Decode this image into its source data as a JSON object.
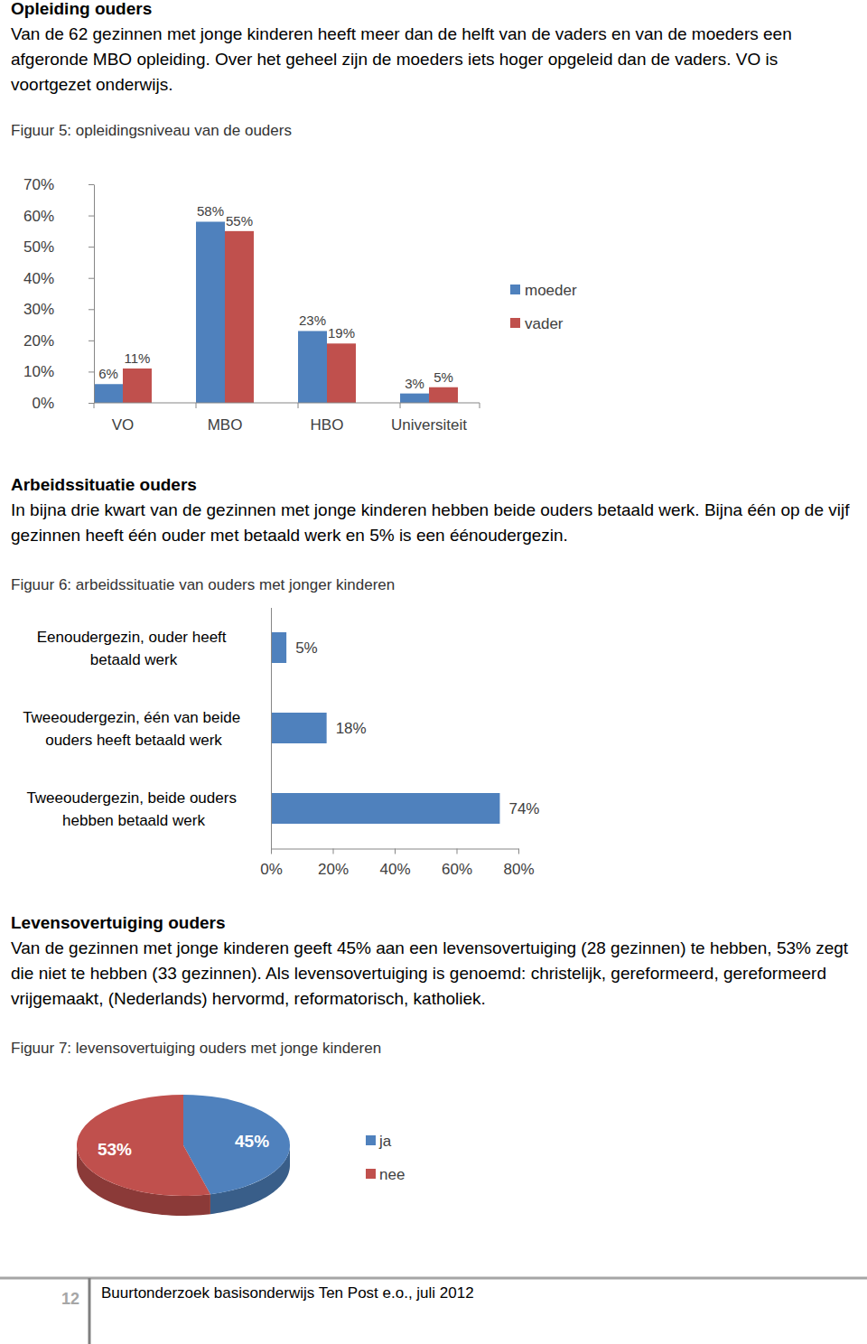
{
  "sections": [
    {
      "heading": "Opleiding ouders",
      "text": "Van de 62 gezinnen met jonge kinderen heeft meer dan de helft van de vaders en van de moeders een afgeronde MBO opleiding. Over het geheel zijn de moeders iets hoger opgeleid dan de vaders. VO is voortgezet onderwijs."
    },
    {
      "heading": "Arbeidssituatie ouders",
      "text": "In bijna drie kwart van de gezinnen met jonge kinderen hebben beide ouders betaald werk. Bijna één op de vijf gezinnen heeft één ouder met betaald werk en 5% is een éénoudergezin."
    },
    {
      "heading": "Levensovertuiging ouders",
      "text": "Van de gezinnen met jonge kinderen geeft 45% aan een levensovertuiging (28 gezinnen) te hebben, 53% zegt die niet te hebben (33 gezinnen). Als levensovertuiging is genoemd: christelijk, gereformeerd, gereformeerd vrijgemaakt, (Nederlands) hervormd, reformatorisch, katholiek."
    }
  ],
  "chart_data": [
    {
      "type": "bar",
      "title": "Figuur 5: opleidingsniveau van de ouders",
      "categories": [
        "VO",
        "MBO",
        "HBO",
        "Universiteit"
      ],
      "series": [
        {
          "name": "moeder",
          "color": "#4f81bd",
          "values": [
            6,
            58,
            23,
            3
          ],
          "value_labels": [
            "6%",
            "58%",
            "23%",
            "3%"
          ]
        },
        {
          "name": "vader",
          "color": "#c0504d",
          "values": [
            11,
            55,
            19,
            5
          ],
          "value_labels": [
            "11%",
            "55%",
            "19%",
            "5%"
          ]
        }
      ],
      "ylim": [
        0,
        70
      ],
      "yticks": [
        {
          "value": 0,
          "label": "0%"
        },
        {
          "value": 10,
          "label": "10%"
        },
        {
          "value": 20,
          "label": "20%"
        },
        {
          "value": 30,
          "label": "30%"
        },
        {
          "value": 40,
          "label": "40%"
        },
        {
          "value": 50,
          "label": "50%"
        },
        {
          "value": 60,
          "label": "60%"
        },
        {
          "value": 70,
          "label": "70%"
        }
      ],
      "grid": false,
      "legend": "right",
      "data_labels": true
    },
    {
      "type": "bar",
      "orientation": "horizontal",
      "title": "Figuur 6: arbeidssituatie van ouders met jonger kinderen",
      "categories": [
        "Eenoudergezin, ouder heeft betaald werk",
        "Tweeoudergezin, één van beide ouders heeft betaald werk",
        "Tweeoudergezin, beide ouders hebben betaald werk"
      ],
      "values": [
        5,
        18,
        74
      ],
      "value_labels": [
        "5%",
        "18%",
        "74%"
      ],
      "color": "#4f81bd",
      "xlim": [
        0,
        80
      ],
      "xticks": [
        {
          "value": 0,
          "label": "0%"
        },
        {
          "value": 20,
          "label": "20%"
        },
        {
          "value": 40,
          "label": "40%"
        },
        {
          "value": 60,
          "label": "60%"
        },
        {
          "value": 80,
          "label": "80%"
        }
      ],
      "grid": false,
      "data_labels": true
    },
    {
      "type": "pie",
      "title": "Figuur 7: levensovertuiging ouders met jonge kinderen",
      "categories": [
        "ja",
        "nee"
      ],
      "values": [
        45,
        53
      ],
      "value_labels": [
        "45%",
        "53%"
      ],
      "colors": [
        "#4f81bd",
        "#c0504d"
      ],
      "legend": "right",
      "data_labels": true
    }
  ],
  "footer": {
    "page": "12",
    "text": "Buurtonderzoek basisonderwijs Ten Post e.o., juli 2012"
  }
}
